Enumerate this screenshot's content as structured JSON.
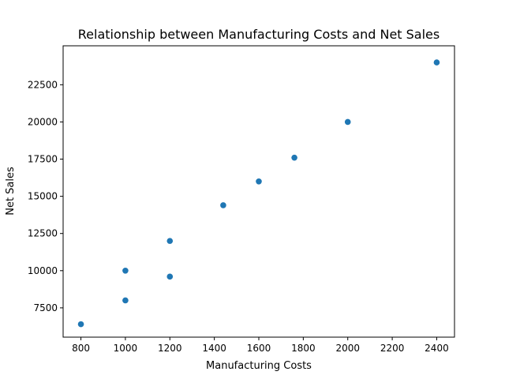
{
  "chart_data": {
    "type": "scatter",
    "title": "Relationship between Manufacturing Costs and Net Sales",
    "xlabel": "Manufacturing Costs",
    "ylabel": "Net Sales",
    "xlim": [
      720,
      2480
    ],
    "ylim": [
      5530,
      25120
    ],
    "x_ticks": [
      800,
      1000,
      1200,
      1400,
      1600,
      1800,
      2000,
      2200,
      2400
    ],
    "y_ticks": [
      7500,
      10000,
      12500,
      15000,
      17500,
      20000,
      22500
    ],
    "grid": false,
    "marker_color": "#1f77b4",
    "points": [
      {
        "x": 800,
        "y": 6400
      },
      {
        "x": 1000,
        "y": 8000
      },
      {
        "x": 1000,
        "y": 10000
      },
      {
        "x": 1200,
        "y": 9600
      },
      {
        "x": 1200,
        "y": 12000
      },
      {
        "x": 1440,
        "y": 14400
      },
      {
        "x": 1600,
        "y": 16000
      },
      {
        "x": 1760,
        "y": 17600
      },
      {
        "x": 2000,
        "y": 20000
      },
      {
        "x": 2400,
        "y": 24000
      }
    ]
  }
}
